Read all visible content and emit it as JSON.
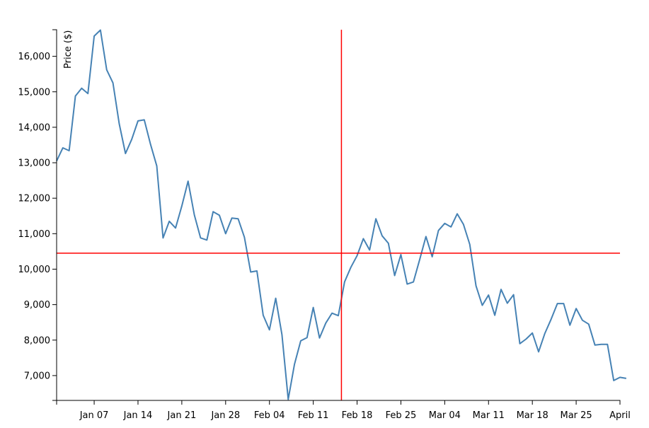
{
  "chart_data": {
    "type": "line",
    "title": "",
    "xlabel": "",
    "ylabel": "Price ($)",
    "x_tick_labels": [
      "Jan 07",
      "Jan 14",
      "Jan 21",
      "Jan 28",
      "Feb 04",
      "Feb 11",
      "Feb 18",
      "Feb 25",
      "Mar 04",
      "Mar 11",
      "Mar 18",
      "Mar 25",
      "April"
    ],
    "y_ticks": [
      7000,
      8000,
      9000,
      10000,
      11000,
      12000,
      13000,
      14000,
      15000,
      16000
    ],
    "y_tick_labels": [
      "7,000",
      "8,000",
      "9,000",
      "10,000",
      "11,000",
      "12,000",
      "13,000",
      "14,000",
      "15,000",
      "16,000"
    ],
    "xlim": [
      "2018-01-01",
      "2018-04-01"
    ],
    "ylim": [
      6300,
      16750
    ],
    "grid": false,
    "line_color": "#4682b4",
    "crosshair_color": "#ff0000",
    "crosshair": {
      "x": "2018-02-15T12:00",
      "y": 10450
    },
    "series": [
      {
        "values": [
          [
            "2018-01-01",
            13050
          ],
          [
            "2018-01-02",
            13420
          ],
          [
            "2018-01-03",
            13340
          ],
          [
            "2018-01-04",
            14880
          ],
          [
            "2018-01-05",
            15100
          ],
          [
            "2018-01-06",
            14950
          ],
          [
            "2018-01-07",
            16570
          ],
          [
            "2018-01-08",
            16740
          ],
          [
            "2018-01-09",
            15620
          ],
          [
            "2018-01-10",
            15250
          ],
          [
            "2018-01-11",
            14100
          ],
          [
            "2018-01-12",
            13260
          ],
          [
            "2018-01-13",
            13660
          ],
          [
            "2018-01-14",
            14180
          ],
          [
            "2018-01-15",
            14210
          ],
          [
            "2018-01-16",
            13520
          ],
          [
            "2018-01-17",
            12910
          ],
          [
            "2018-01-18",
            10880
          ],
          [
            "2018-01-19",
            11350
          ],
          [
            "2018-01-20",
            11160
          ],
          [
            "2018-01-21",
            11780
          ],
          [
            "2018-01-22",
            12480
          ],
          [
            "2018-01-23",
            11530
          ],
          [
            "2018-01-24",
            10880
          ],
          [
            "2018-01-25",
            10820
          ],
          [
            "2018-01-26",
            11620
          ],
          [
            "2018-01-27",
            11520
          ],
          [
            "2018-01-28",
            11000
          ],
          [
            "2018-01-29",
            11440
          ],
          [
            "2018-01-30",
            11420
          ],
          [
            "2018-01-31",
            10900
          ],
          [
            "2018-02-01",
            9920
          ],
          [
            "2018-02-02",
            9950
          ],
          [
            "2018-02-03",
            8700
          ],
          [
            "2018-02-04",
            8290
          ],
          [
            "2018-02-05",
            9180
          ],
          [
            "2018-02-06",
            8150
          ],
          [
            "2018-02-07",
            6330
          ],
          [
            "2018-02-08",
            7320
          ],
          [
            "2018-02-09",
            7980
          ],
          [
            "2018-02-10",
            8070
          ],
          [
            "2018-02-11",
            8920
          ],
          [
            "2018-02-12",
            8060
          ],
          [
            "2018-02-13",
            8480
          ],
          [
            "2018-02-14",
            8760
          ],
          [
            "2018-02-15",
            8690
          ],
          [
            "2018-02-16",
            9640
          ],
          [
            "2018-02-17",
            10050
          ],
          [
            "2018-02-18",
            10380
          ],
          [
            "2018-02-19",
            10860
          ],
          [
            "2018-02-20",
            10540
          ],
          [
            "2018-02-21",
            11420
          ],
          [
            "2018-02-22",
            10940
          ],
          [
            "2018-02-23",
            10730
          ],
          [
            "2018-02-24",
            9820
          ],
          [
            "2018-02-25",
            10410
          ],
          [
            "2018-02-26",
            9580
          ],
          [
            "2018-02-27",
            9640
          ],
          [
            "2018-02-28",
            10270
          ],
          [
            "2018-03-01",
            10920
          ],
          [
            "2018-03-02",
            10350
          ],
          [
            "2018-03-03",
            11090
          ],
          [
            "2018-03-04",
            11290
          ],
          [
            "2018-03-05",
            11190
          ],
          [
            "2018-03-06",
            11560
          ],
          [
            "2018-03-07",
            11260
          ],
          [
            "2018-03-08",
            10700
          ],
          [
            "2018-03-09",
            9530
          ],
          [
            "2018-03-10",
            8980
          ],
          [
            "2018-03-11",
            9270
          ],
          [
            "2018-03-12",
            8700
          ],
          [
            "2018-03-13",
            9430
          ],
          [
            "2018-03-14",
            9040
          ],
          [
            "2018-03-15",
            9280
          ],
          [
            "2018-03-16",
            7900
          ],
          [
            "2018-03-17",
            8030
          ],
          [
            "2018-03-18",
            8200
          ],
          [
            "2018-03-19",
            7670
          ],
          [
            "2018-03-20",
            8190
          ],
          [
            "2018-03-21",
            8590
          ],
          [
            "2018-03-22",
            9030
          ],
          [
            "2018-03-23",
            9030
          ],
          [
            "2018-03-24",
            8420
          ],
          [
            "2018-03-25",
            8890
          ],
          [
            "2018-03-26",
            8560
          ],
          [
            "2018-03-27",
            8450
          ],
          [
            "2018-03-28",
            7860
          ],
          [
            "2018-03-29",
            7880
          ],
          [
            "2018-03-30",
            7880
          ],
          [
            "2018-03-31",
            6860
          ],
          [
            "2018-04-01",
            6950
          ],
          [
            "2018-04-02",
            6920
          ]
        ]
      }
    ]
  }
}
